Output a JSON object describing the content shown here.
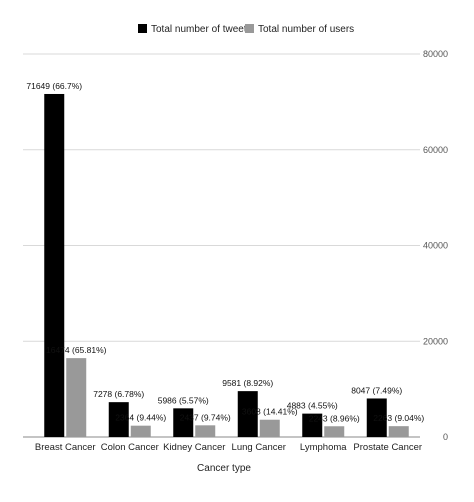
{
  "chart_data": {
    "type": "bar",
    "categories": [
      "Breast Cancer",
      "Colon Cancer",
      "Kidney Cancer",
      "Lung Cancer",
      "Lymphoma",
      "Prostate Cancer"
    ],
    "series": [
      {
        "name": "Total number of tweets",
        "color": "#000000",
        "values": [
          71649,
          7278,
          5986,
          9581,
          4883,
          8047
        ],
        "labels": [
          "71649 (66.7%)",
          "7278 (6.78%)",
          "5986 (5.57%)",
          "9581 (8.92%)",
          "4883 (4.55%)",
          "8047 (7.49%)"
        ]
      },
      {
        "name": "Total number of users",
        "color": "#999999",
        "values": [
          16474,
          2364,
          2437,
          3608,
          2243,
          2263
        ],
        "labels": [
          "16474 (65.81%)",
          "2364 (9.44%)",
          "2437 (9.74%)",
          "3608 (14.41%)",
          "2243 (8.96%)",
          "2263 (9.04%)"
        ]
      }
    ],
    "xlabel": "Cancer type",
    "ylabel": "",
    "ylim": [
      0,
      80000
    ],
    "yticks": [
      "0",
      "20000",
      "40000",
      "60000",
      "80000"
    ],
    "grid": true,
    "legend_position": "top-center",
    "y_axis_side": "right"
  }
}
